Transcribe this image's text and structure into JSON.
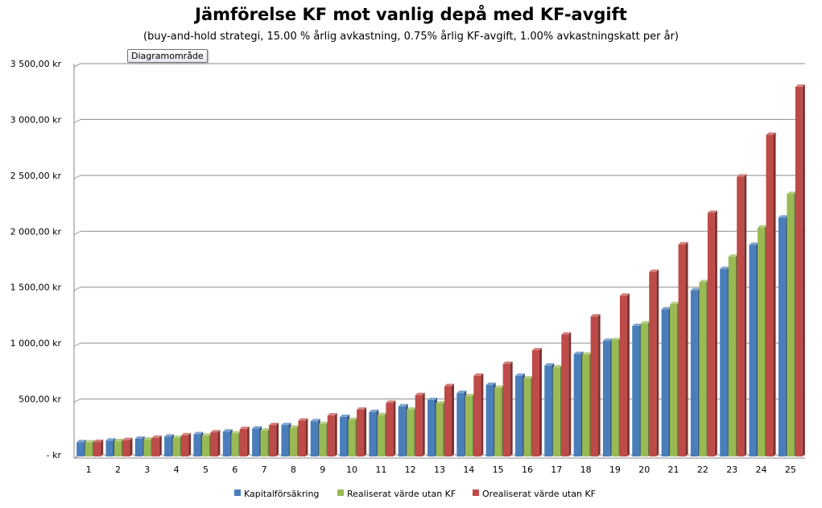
{
  "chart_data": {
    "type": "bar",
    "title": "Jämförelse KF mot vanlig depå med KF-avgift",
    "subtitle": "(buy-and-hold  strategi, 15.00 % årlig avkastning, 0.75% årlig KF-avgift, 1.00% avkastningskatt per år)",
    "tooltip": "Diagramområde",
    "categories": [
      "1",
      "2",
      "3",
      "4",
      "5",
      "6",
      "7",
      "8",
      "9",
      "10",
      "11",
      "12",
      "13",
      "14",
      "15",
      "16",
      "17",
      "18",
      "19",
      "20",
      "21",
      "22",
      "23",
      "24",
      "25"
    ],
    "ylim": [
      0,
      3500
    ],
    "yticks": [
      0,
      500,
      1000,
      1500,
      2000,
      2500,
      3000,
      3500
    ],
    "ytick_labels": [
      "-   kr",
      "500,00 kr",
      "1 000,00 kr",
      "1 500,00 kr",
      "2 000,00 kr",
      "2 500,00 kr",
      "3 000,00 kr",
      "3 500,00 kr"
    ],
    "grid": true,
    "legend_position": "bottom",
    "series": [
      {
        "name": "Kapitalförsäkring",
        "color": "#4a7ebb",
        "values": [
          113.0,
          127.69,
          144.29,
          163.05,
          184.24,
          208.19,
          235.26,
          265.84,
          300.4,
          339.46,
          383.58,
          433.45,
          489.8,
          553.48,
          625.47,
          706.68,
          798.55,
          902.36,
          1019.66,
          1152.31,
          1302.11,
          1471.38,
          1662.67,
          1878.81,
          2123.06
        ]
      },
      {
        "name": "Realiserat värde utan KF",
        "color": "#98b954",
        "values": [
          110.5,
          122.58,
          136.46,
          152.43,
          170.8,
          191.92,
          216.2,
          244.13,
          276.25,
          313.19,
          355.67,
          404.52,
          460.7,
          525.3,
          599.6,
          685.03,
          783.29,
          896.29,
          1026.23,
          1175.66,
          1347.51,
          1545.13,
          1772.4,
          2033.76,
          2334.32
        ]
      },
      {
        "name": "Orealiserat värde utan KF",
        "color": "#be4b48",
        "values": [
          115.0,
          132.25,
          152.09,
          174.9,
          201.14,
          231.31,
          266.0,
          305.9,
          351.79,
          404.56,
          465.24,
          535.03,
          615.28,
          707.57,
          813.71,
          935.76,
          1076.13,
          1237.55,
          1423.18,
          1636.65,
          1882.15,
          2164.47,
          2489.14,
          2862.51,
          3291.89
        ]
      }
    ]
  }
}
